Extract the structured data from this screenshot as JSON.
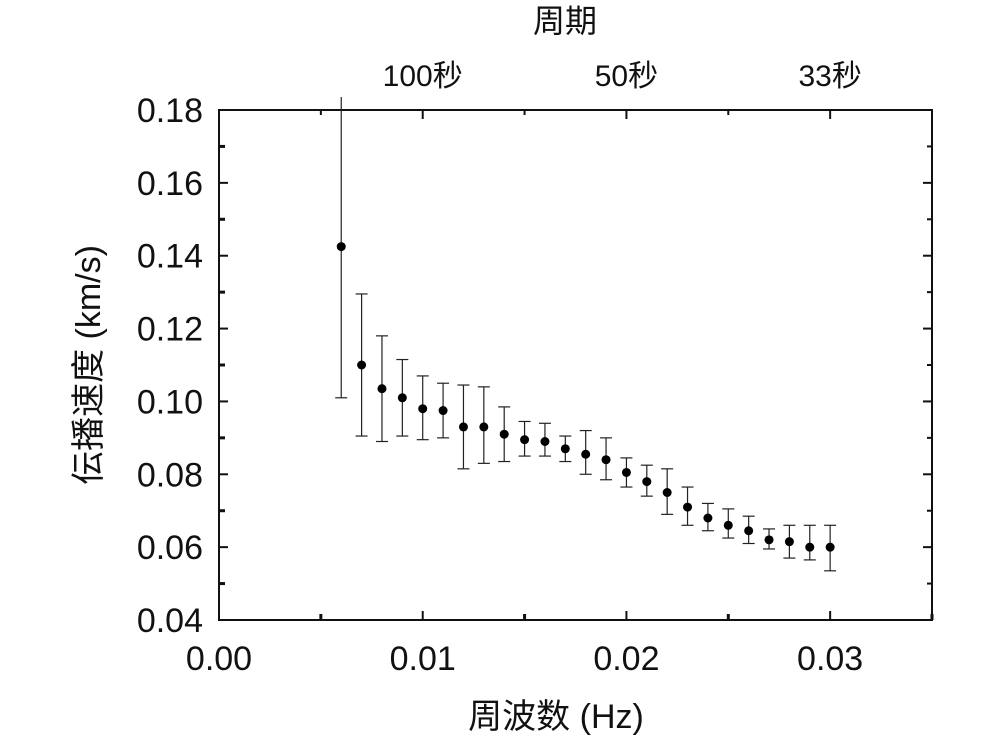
{
  "chart_data": {
    "type": "scatter",
    "xlabel": "周波数 (Hz)",
    "ylabel": "伝播速度 (km/s)",
    "top_axis_title": "周期",
    "top_ticks": [
      {
        "value": 0.01,
        "label": "100秒"
      },
      {
        "value": 0.02,
        "label": "50秒"
      },
      {
        "value": 0.03,
        "label": "33秒"
      }
    ],
    "xlim": [
      0.0,
      0.035
    ],
    "ylim": [
      0.04,
      0.18
    ],
    "xticks": [
      {
        "value": 0.0,
        "label": "0.00"
      },
      {
        "value": 0.01,
        "label": "0.01"
      },
      {
        "value": 0.02,
        "label": "0.02"
      },
      {
        "value": 0.03,
        "label": "0.03"
      }
    ],
    "yticks": [
      {
        "value": 0.04,
        "label": "0.04"
      },
      {
        "value": 0.06,
        "label": "0.06"
      },
      {
        "value": 0.08,
        "label": "0.08"
      },
      {
        "value": 0.1,
        "label": "0.10"
      },
      {
        "value": 0.12,
        "label": "0.12"
      },
      {
        "value": 0.14,
        "label": "0.14"
      },
      {
        "value": 0.16,
        "label": "0.16"
      },
      {
        "value": 0.18,
        "label": "0.18"
      }
    ],
    "grid": false,
    "marker_color": "#000000",
    "points": [
      {
        "x": 0.006,
        "y": 0.1425,
        "ylow": 0.101,
        "yhigh": 0.1845
      },
      {
        "x": 0.007,
        "y": 0.11,
        "ylow": 0.0905,
        "yhigh": 0.1295
      },
      {
        "x": 0.008,
        "y": 0.1035,
        "ylow": 0.089,
        "yhigh": 0.118
      },
      {
        "x": 0.009,
        "y": 0.101,
        "ylow": 0.0905,
        "yhigh": 0.1115
      },
      {
        "x": 0.01,
        "y": 0.098,
        "ylow": 0.0895,
        "yhigh": 0.107
      },
      {
        "x": 0.011,
        "y": 0.0975,
        "ylow": 0.09,
        "yhigh": 0.105
      },
      {
        "x": 0.012,
        "y": 0.093,
        "ylow": 0.0815,
        "yhigh": 0.1045
      },
      {
        "x": 0.013,
        "y": 0.093,
        "ylow": 0.083,
        "yhigh": 0.104
      },
      {
        "x": 0.014,
        "y": 0.091,
        "ylow": 0.0835,
        "yhigh": 0.0985
      },
      {
        "x": 0.015,
        "y": 0.0895,
        "ylow": 0.085,
        "yhigh": 0.0945
      },
      {
        "x": 0.016,
        "y": 0.089,
        "ylow": 0.085,
        "yhigh": 0.094
      },
      {
        "x": 0.017,
        "y": 0.087,
        "ylow": 0.0835,
        "yhigh": 0.0905
      },
      {
        "x": 0.018,
        "y": 0.0855,
        "ylow": 0.08,
        "yhigh": 0.092
      },
      {
        "x": 0.019,
        "y": 0.084,
        "ylow": 0.0785,
        "yhigh": 0.09
      },
      {
        "x": 0.02,
        "y": 0.0805,
        "ylow": 0.0765,
        "yhigh": 0.0845
      },
      {
        "x": 0.021,
        "y": 0.078,
        "ylow": 0.074,
        "yhigh": 0.0825
      },
      {
        "x": 0.022,
        "y": 0.075,
        "ylow": 0.069,
        "yhigh": 0.0815
      },
      {
        "x": 0.023,
        "y": 0.071,
        "ylow": 0.066,
        "yhigh": 0.0765
      },
      {
        "x": 0.024,
        "y": 0.068,
        "ylow": 0.0645,
        "yhigh": 0.072
      },
      {
        "x": 0.025,
        "y": 0.066,
        "ylow": 0.0625,
        "yhigh": 0.0705
      },
      {
        "x": 0.026,
        "y": 0.0645,
        "ylow": 0.061,
        "yhigh": 0.0685
      },
      {
        "x": 0.027,
        "y": 0.062,
        "ylow": 0.0595,
        "yhigh": 0.065
      },
      {
        "x": 0.028,
        "y": 0.0615,
        "ylow": 0.057,
        "yhigh": 0.066
      },
      {
        "x": 0.029,
        "y": 0.06,
        "ylow": 0.0565,
        "yhigh": 0.066
      },
      {
        "x": 0.03,
        "y": 0.06,
        "ylow": 0.0535,
        "yhigh": 0.066
      }
    ]
  }
}
